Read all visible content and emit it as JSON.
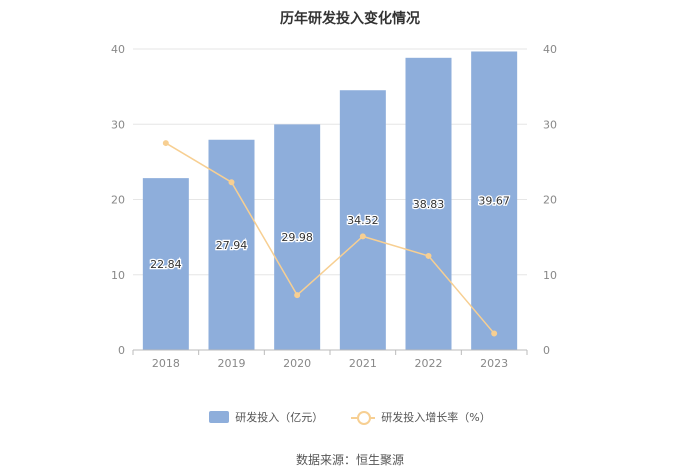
{
  "chart_data": {
    "type": "bar",
    "title": "历年研发投入变化情况",
    "categories": [
      "2018",
      "2019",
      "2020",
      "2021",
      "2022",
      "2023"
    ],
    "series": [
      {
        "name": "研发投入（亿元）",
        "type": "bar",
        "values": [
          22.84,
          27.94,
          29.98,
          34.52,
          38.83,
          39.67
        ],
        "color": "#8eaedb"
      },
      {
        "name": "研发投入增长率（%）",
        "type": "line",
        "values": [
          27.5,
          22.3,
          7.3,
          15.1,
          12.5,
          2.2
        ],
        "color": "#f7cf92"
      }
    ],
    "y_left": {
      "min": 0,
      "max": 40,
      "ticks": [
        "0",
        "10",
        "20",
        "30",
        "40"
      ]
    },
    "y_right": {
      "min": 0,
      "max": 40,
      "ticks": [
        "0",
        "10",
        "20",
        "30",
        "40"
      ]
    },
    "grid": true,
    "legend": "bottom"
  },
  "source": "数据来源：恒生聚源"
}
